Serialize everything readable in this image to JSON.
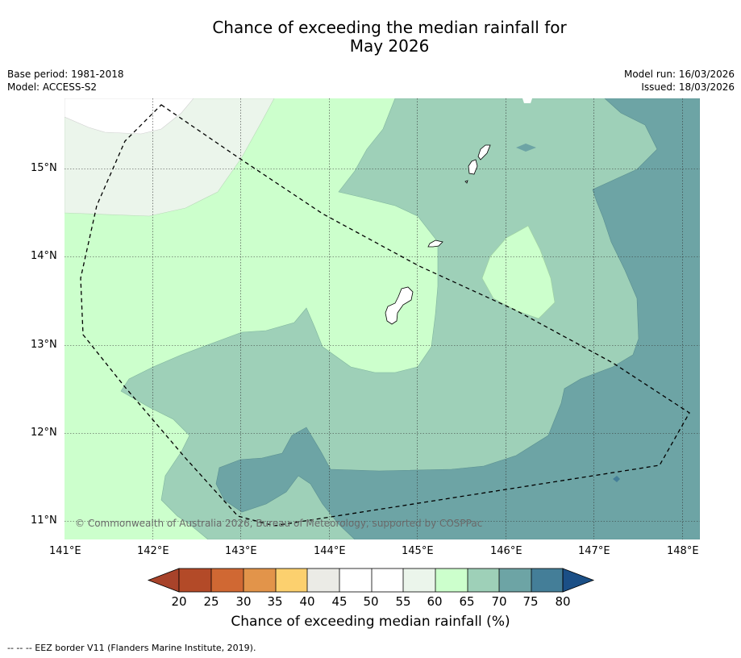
{
  "title": {
    "line1": "Chance of exceeding the median rainfall for",
    "line2": "May 2026"
  },
  "meta": {
    "base_period": "Base period: 1981-2018",
    "model": "Model: ACCESS-S2",
    "model_run": "Model run: 16/03/2026",
    "issued": "Issued: 18/03/2026"
  },
  "axes": {
    "lon_labels": [
      "141°E",
      "142°E",
      "143°E",
      "144°E",
      "145°E",
      "146°E",
      "147°E",
      "148°E"
    ],
    "lat_labels": [
      "15°N",
      "14°N",
      "13°N",
      "12°N",
      "11°N"
    ]
  },
  "colorbar": {
    "label": "Chance of exceeding median rainfall (%)",
    "ticks": [
      "20",
      "25",
      "30",
      "35",
      "40",
      "45",
      "50",
      "55",
      "60",
      "65",
      "70",
      "75",
      "80"
    ],
    "colors": [
      "#a8432a",
      "#b34a28",
      "#d06833",
      "#e2944a",
      "#fcd06e",
      "#ebebe6",
      "#ffffff",
      "#ffffff",
      "#ebf5eb",
      "#ccffcc",
      "#9ed0b8",
      "#6da4a5",
      "#447e98",
      "#1b4f86"
    ]
  },
  "copyright": "© Commonwealth of Australia 2026, Bureau of Meteorology, supported by COSPPac",
  "footer": "--  --  -- EEZ border V11 (Flanders Marine Institute, 2019)."
}
